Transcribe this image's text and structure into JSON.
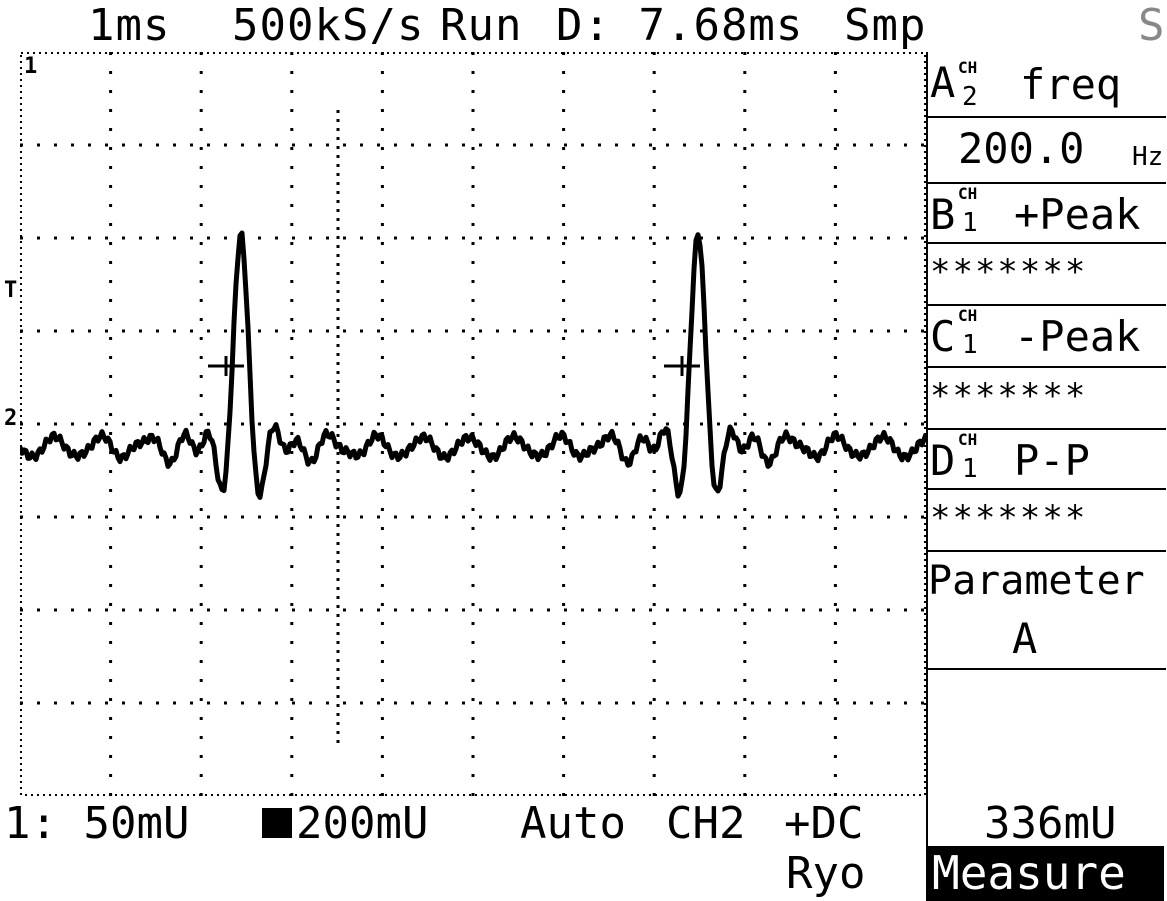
{
  "header": {
    "timebase": "1ms",
    "sample_rate": "500kS/s",
    "run_state": "Run",
    "delay": "D: 7.68ms",
    "acq_mode": "Smp",
    "right_glyph": "S"
  },
  "graticule": {
    "grid_divisions_x": 10,
    "grid_divisions_y": 8,
    "trigger_marker": "T",
    "ch1_marker": "1",
    "ch2_marker": "2"
  },
  "measurements": {
    "a": {
      "letter": "A",
      "channel_tag": "CH",
      "channel": "2",
      "param": "freq",
      "value": "200.0",
      "unit": "Hz"
    },
    "b": {
      "letter": "B",
      "channel_tag": "CH",
      "channel": "1",
      "param": "+Peak",
      "value": "*******"
    },
    "c": {
      "letter": "C",
      "channel_tag": "CH",
      "channel": "1",
      "param": "-Peak",
      "value": "*******"
    },
    "d": {
      "letter": "D",
      "channel_tag": "CH",
      "channel": "1",
      "param": "P-P",
      "value": "*******"
    },
    "parameter_label": "Parameter",
    "parameter_value": "A"
  },
  "footer": {
    "ch1_scale": "1: 50mU",
    "ch2_scale": "200mU",
    "trigger_mode": "Auto",
    "trigger_source": "CH2",
    "coupling": "+DC",
    "avg_label": "Ryo",
    "trigger_level": "336mU"
  },
  "softkey": {
    "label": "Measure"
  },
  "colors": {
    "background": "#ffffff",
    "foreground": "#000000"
  }
}
